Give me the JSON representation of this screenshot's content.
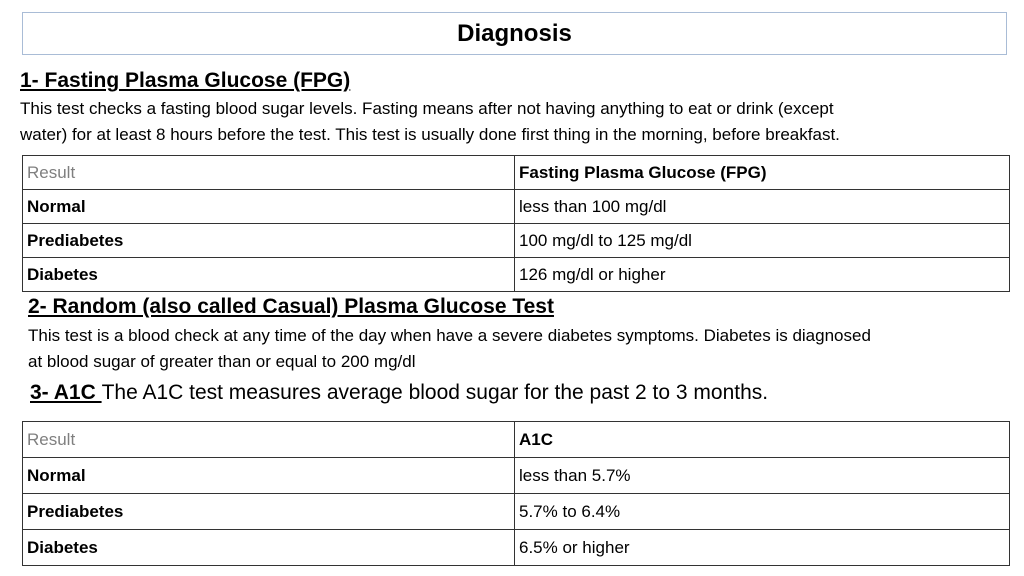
{
  "title": "Diagnosis",
  "section1": {
    "heading": "1- Fasting Plasma Glucose (FPG)",
    "line1": "This test checks a fasting blood sugar levels. Fasting means after not having anything to eat or drink (except",
    "line2": "water) for at least 8 hours before the test. This test is usually done first thing in the morning, before breakfast."
  },
  "table1": {
    "header": [
      "Result",
      "Fasting Plasma Glucose (FPG)"
    ],
    "rows": [
      [
        "Normal",
        "less than 100 mg/dl"
      ],
      [
        "Prediabetes",
        "100 mg/dl to 125 mg/dl"
      ],
      [
        "Diabetes",
        "126 mg/dl or higher"
      ]
    ]
  },
  "section2": {
    "heading": "2- Random (also called Casual) Plasma Glucose Test",
    "line1": "This test is a blood check at any time of the day when have a severe diabetes symptoms. Diabetes is diagnosed",
    "line2": "at blood sugar of greater than or equal to 200 mg/dl"
  },
  "section3": {
    "heading": "3- A1C ",
    "text": "The A1C test measures  average blood sugar for the past 2 to 3 months."
  },
  "table2": {
    "header": [
      "Result",
      "A1C"
    ],
    "rows": [
      [
        "Normal",
        "less than 5.7%"
      ],
      [
        "Prediabetes",
        "5.7% to 6.4%"
      ],
      [
        "Diabetes",
        "6.5% or higher"
      ]
    ]
  }
}
